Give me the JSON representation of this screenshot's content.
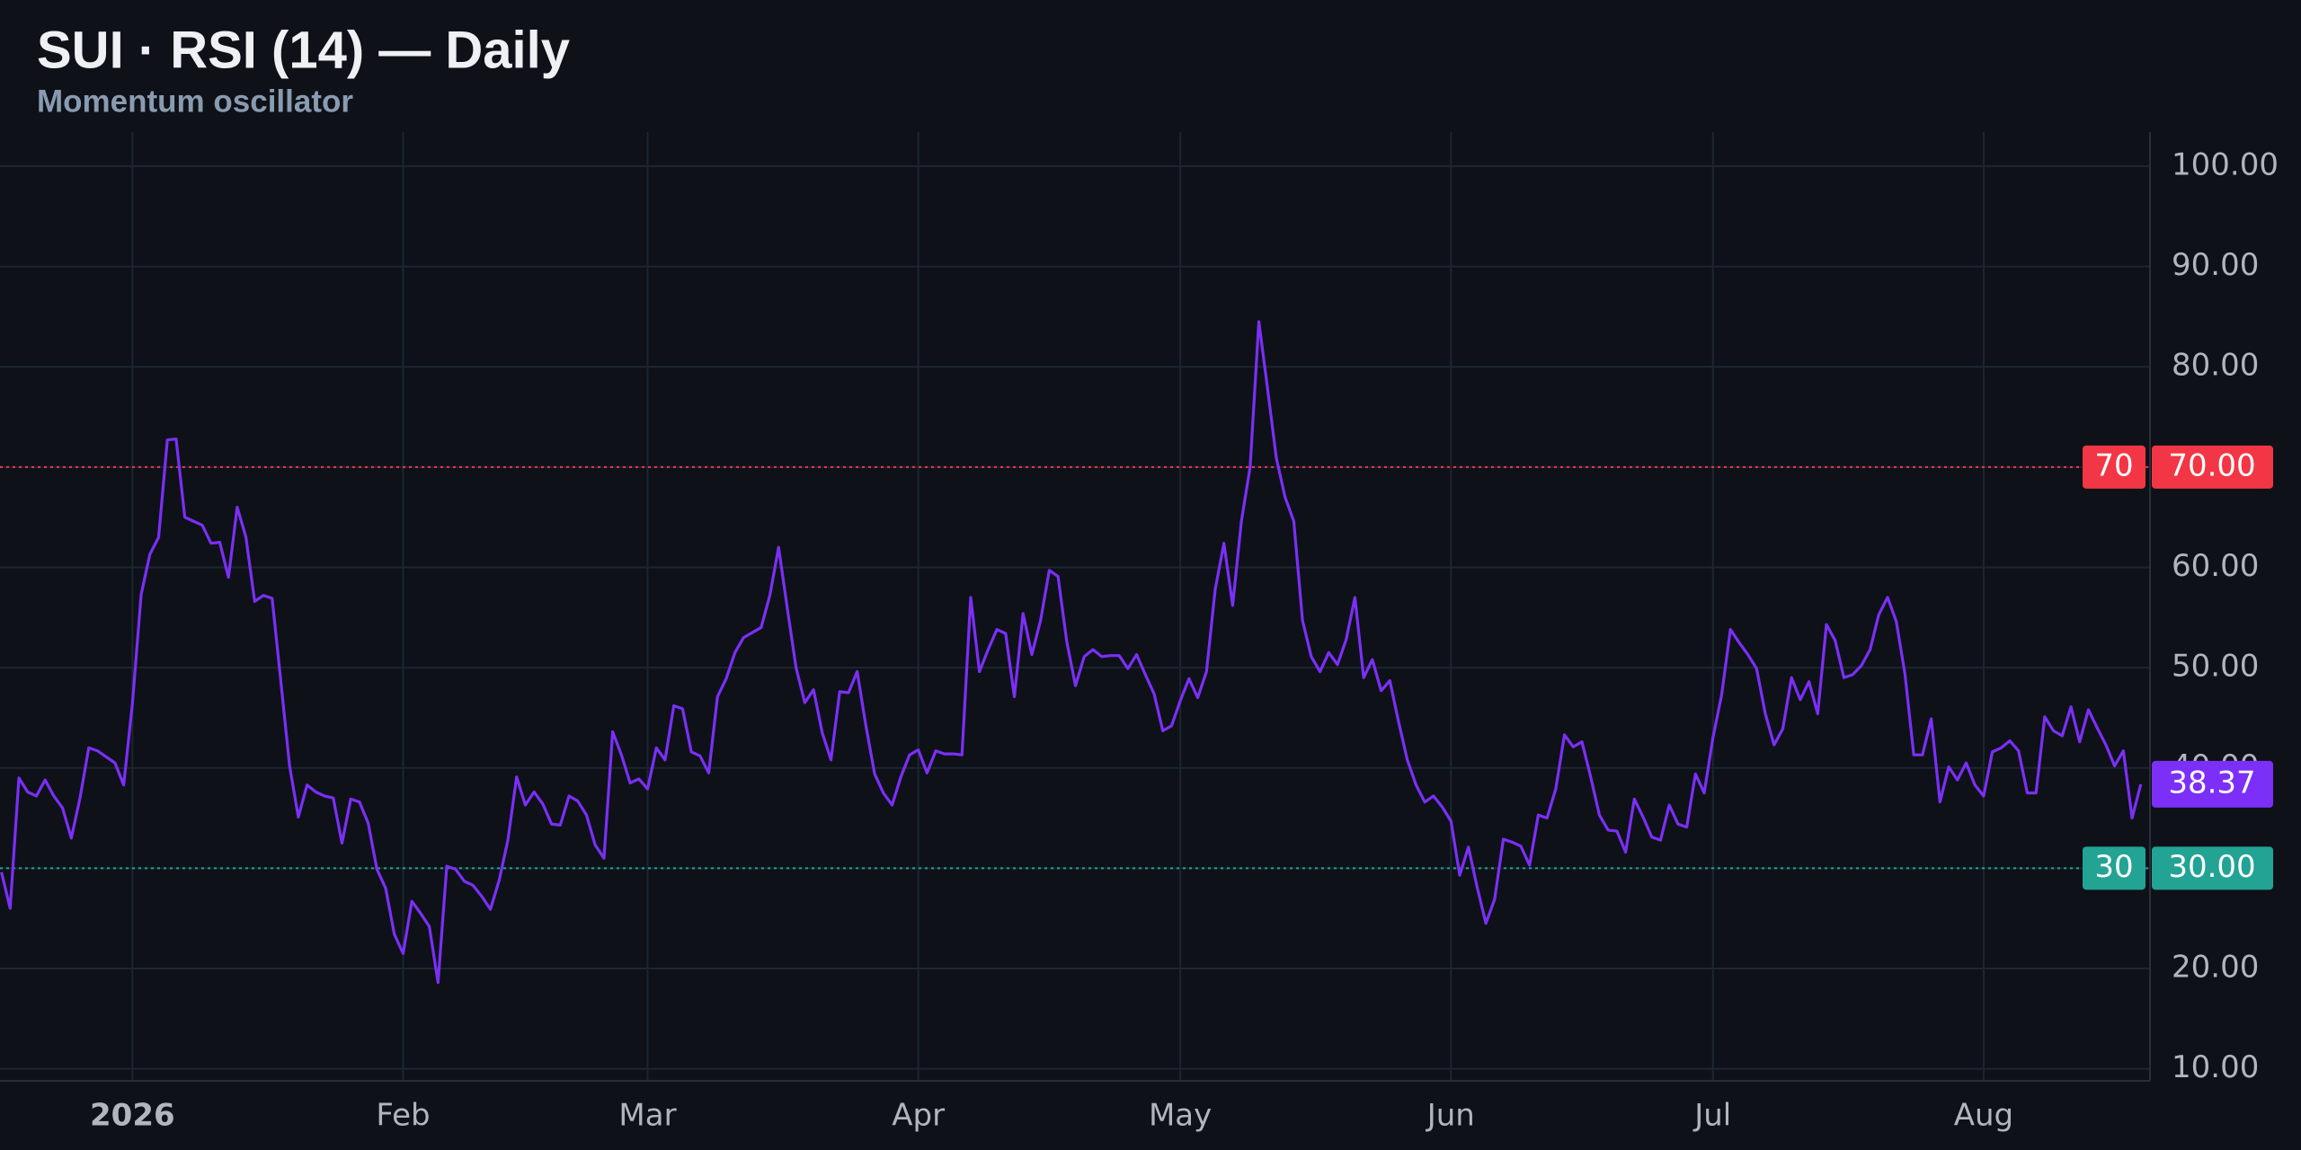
{
  "chart_data": {
    "type": "line",
    "title": "SUI · RSI (14) — Daily",
    "subtitle": "Momentum oscillator",
    "color": "#7b2ff7",
    "categories": [
      null,
      null,
      null,
      null,
      null,
      null,
      null,
      null,
      null,
      null,
      null,
      null,
      null,
      null,
      null,
      "2026",
      null,
      null,
      null,
      null,
      null,
      null,
      null,
      null,
      null,
      null,
      null,
      null,
      null,
      null,
      null,
      null,
      null,
      null,
      null,
      null,
      null,
      null,
      null,
      null,
      null,
      null,
      null,
      null,
      null,
      null,
      "Feb",
      null,
      null,
      null,
      null,
      null,
      null,
      null,
      null,
      null,
      null,
      null,
      null,
      null,
      null,
      null,
      null,
      null,
      null,
      null,
      null,
      null,
      null,
      null,
      null,
      null,
      null,
      null,
      "Mar",
      null,
      null,
      null,
      null,
      null,
      null,
      null,
      null,
      null,
      null,
      null,
      null,
      null,
      null,
      null,
      null,
      null,
      null,
      null,
      null,
      null,
      null,
      null,
      null,
      null,
      null,
      null,
      null,
      null,
      null,
      "Apr",
      null,
      null,
      null,
      null,
      null,
      null,
      null,
      null,
      null,
      null,
      null,
      null,
      null,
      null,
      null,
      null,
      null,
      null,
      null,
      null,
      null,
      null,
      null,
      null,
      null,
      null,
      null,
      null,
      null,
      "May",
      null,
      null,
      null,
      null,
      null,
      null,
      null,
      null,
      null,
      null,
      null,
      null,
      null,
      null,
      null,
      null,
      null,
      null,
      null,
      null,
      null,
      null,
      null,
      null,
      null,
      null,
      null,
      null,
      null,
      null,
      "Jun",
      null,
      null,
      null,
      null,
      null,
      null,
      null,
      null,
      null,
      null,
      null,
      null,
      null,
      null,
      null,
      null,
      null,
      null,
      null,
      null,
      null,
      null,
      null,
      null,
      null,
      null,
      null,
      null,
      null,
      "Jul",
      null,
      null,
      null,
      null,
      null,
      null,
      null,
      null,
      null,
      null,
      null,
      null,
      null,
      null,
      null,
      null,
      null,
      null,
      null,
      null,
      null,
      null,
      null,
      null,
      null,
      null,
      null,
      null,
      null,
      null,
      "Aug",
      null,
      null,
      null,
      null,
      null,
      null,
      null,
      null,
      null,
      null,
      null,
      null,
      null,
      null,
      null,
      null,
      null,
      null
    ],
    "values": [
      29.6,
      26,
      39,
      37.6,
      37.2,
      38.8,
      37.2,
      36,
      33,
      37,
      42,
      41.7,
      41.1,
      40.5,
      38.3,
      46.4,
      57.3,
      61.3,
      63,
      72.7,
      72.8,
      65,
      64.6,
      64.2,
      62.4,
      62.5,
      59,
      66,
      63,
      56.6,
      57.2,
      56.9,
      48.6,
      40.2,
      35.1,
      38.3,
      37.6,
      37.2,
      37,
      32.5,
      36.9,
      36.6,
      34.5,
      29.9,
      28,
      23.4,
      21.5,
      26.7,
      25.5,
      24.2,
      18.6,
      30.2,
      29.9,
      28.7,
      28.3,
      27.2,
      25.9,
      28.8,
      32.8,
      39.1,
      36.3,
      37.6,
      36.4,
      34.4,
      34.3,
      37.2,
      36.7,
      35.3,
      32.3,
      31,
      43.6,
      41.3,
      38.5,
      38.9,
      37.9,
      42,
      40.8,
      46.2,
      45.9,
      41.6,
      41.2,
      39.5,
      47.1,
      48.9,
      51.5,
      53,
      53.5,
      54,
      57.2,
      62,
      55.9,
      50,
      46.5,
      47.8,
      43.5,
      40.8,
      47.6,
      47.5,
      49.6,
      44.2,
      39.4,
      37.5,
      36.3,
      39.1,
      41.3,
      41.8,
      39.5,
      41.7,
      41.4,
      41.4,
      41.3,
      57,
      49.6,
      51.8,
      53.8,
      53.4,
      47.1,
      55.4,
      51.3,
      54.7,
      59.7,
      59.1,
      52.6,
      48.2,
      51.1,
      51.8,
      51.1,
      51.2,
      51.2,
      49.9,
      51.3,
      49.3,
      47.4,
      43.7,
      44.2,
      46.7,
      48.9,
      47,
      49.6,
      57.8,
      62.4,
      56.2,
      64.6,
      70,
      84.5,
      77.8,
      70.9,
      67,
      64.6,
      54.7,
      51.1,
      49.6,
      51.5,
      50.3,
      52.8,
      57,
      49,
      50.8,
      47.7,
      48.7,
      44.6,
      40.8,
      38.3,
      36.6,
      37.2,
      36.1,
      34.7,
      29.3,
      32.1,
      28.1,
      24.5,
      26.9,
      32.9,
      32.6,
      32.2,
      30.3,
      35.3,
      35,
      37.9,
      43.3,
      42.1,
      42.6,
      39.1,
      35.3,
      33.8,
      33.7,
      31.6,
      36.9,
      35.1,
      33.1,
      32.8,
      36.3,
      34.4,
      34.1,
      39.4,
      37.5,
      43,
      47.3,
      53.8,
      52.5,
      51.3,
      49.9,
      45.4,
      42.3,
      43.9,
      49,
      46.8,
      48.6,
      45.4,
      54.3,
      52.7,
      49,
      49.3,
      50.2,
      51.8,
      55.3,
      57,
      54.6,
      49.3,
      41.3,
      41.3,
      44.9,
      36.6,
      40.1,
      38.8,
      40.5,
      38.3,
      37.2,
      41.6,
      42,
      42.7,
      41.7,
      37.5,
      37.5,
      45.1,
      43.7,
      43.2,
      46.1,
      42.6,
      45.8,
      44,
      42.3,
      40.2,
      41.7,
      35,
      38.37
    ],
    "ylim": [
      8.8,
      103.4
    ],
    "yticks": [
      {
        "value": 10,
        "label": "10.00"
      },
      {
        "value": 20,
        "label": "20.00"
      },
      {
        "value": 30,
        "label": "30.00"
      },
      {
        "value": 40,
        "label": "40.00"
      },
      {
        "value": 50,
        "label": "50.00"
      },
      {
        "value": 60,
        "label": "60.00"
      },
      {
        "value": 70,
        "label": "70.00"
      },
      {
        "value": 80,
        "label": "80.00"
      },
      {
        "value": 90,
        "label": "90.00"
      },
      {
        "value": 100,
        "label": "100.00"
      }
    ],
    "grid": true,
    "hlines": [
      {
        "name": "70",
        "value": 70,
        "label": "70.00",
        "color": "#f23645"
      },
      {
        "name": "30",
        "value": 30,
        "label": "30.00",
        "color": "#22a394"
      }
    ]
  }
}
